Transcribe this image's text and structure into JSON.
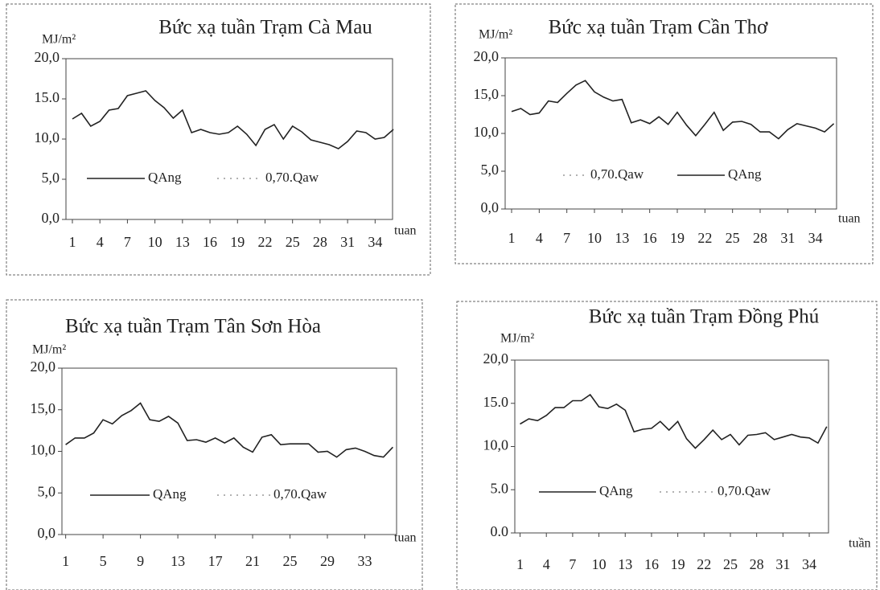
{
  "chart_data": [
    {
      "type": "line",
      "title": "Bức xạ tuần Trạm Cà Mau",
      "y_label": "MJ/m²",
      "x_label": "tuan",
      "x": [
        1,
        2,
        3,
        4,
        5,
        6,
        7,
        8,
        9,
        10,
        11,
        12,
        13,
        14,
        15,
        16,
        17,
        18,
        19,
        20,
        21,
        22,
        23,
        24,
        25,
        26,
        27,
        28,
        29,
        30,
        31,
        32,
        33,
        34,
        35,
        36
      ],
      "series": [
        {
          "name": "QAng",
          "color": "#222222",
          "values": [
            12.5,
            13.2,
            11.6,
            12.2,
            13.6,
            13.8,
            15.4,
            15.7,
            16.0,
            14.8,
            13.9,
            12.6,
            13.6,
            10.8,
            11.2,
            10.8,
            10.6,
            10.8,
            11.6,
            10.6,
            9.2,
            11.2,
            11.8,
            10.0,
            11.6,
            10.9,
            9.9,
            9.6,
            9.3,
            8.8,
            9.7,
            11.0,
            10.8,
            10.0,
            10.2,
            11.2
          ]
        },
        {
          "name": "0,70.Qaw",
          "color": "#999999",
          "values": [
            null,
            null,
            null,
            null,
            null,
            null,
            null,
            null,
            null,
            null,
            null,
            null,
            null,
            null,
            null,
            null,
            null,
            null,
            null,
            null,
            null,
            null,
            null,
            null,
            null,
            null,
            null,
            null,
            null,
            null,
            null,
            null,
            null,
            null,
            null,
            null
          ]
        }
      ],
      "xlim": [
        0.3,
        35.9
      ],
      "xticks": [
        1,
        4,
        7,
        10,
        13,
        16,
        19,
        22,
        25,
        28,
        31,
        34
      ],
      "ylim": [
        0,
        20
      ],
      "yticks": [
        {
          "value": 0,
          "label": "0,0"
        },
        {
          "value": 5,
          "label": "5,0"
        },
        {
          "value": 10,
          "label": "10,0"
        },
        {
          "value": 15,
          "label": "15.0"
        },
        {
          "value": 20,
          "label": "20,0"
        }
      ]
    },
    {
      "type": "line",
      "title": "Bức xạ tuần Trạm Cần Thơ",
      "y_label": "MJ/m²",
      "x_label": "tuan",
      "x": [
        1,
        2,
        3,
        4,
        5,
        6,
        7,
        8,
        9,
        10,
        11,
        12,
        13,
        14,
        15,
        16,
        17,
        18,
        19,
        20,
        21,
        22,
        23,
        24,
        25,
        26,
        27,
        28,
        29,
        30,
        31,
        32,
        33,
        34,
        35,
        36
      ],
      "series": [
        {
          "name": "0,70.Qaw",
          "color": "#999999",
          "values": [
            null,
            null,
            null,
            null,
            null,
            null,
            null,
            null,
            null,
            null,
            null,
            null,
            null,
            null,
            null,
            null,
            null,
            null,
            null,
            null,
            null,
            null,
            null,
            null,
            null,
            null,
            null,
            null,
            null,
            null,
            null,
            null,
            null,
            null,
            null,
            null
          ]
        },
        {
          "name": "QAng",
          "color": "#222222",
          "values": [
            12.9,
            13.3,
            12.5,
            12.7,
            14.3,
            14.1,
            15.3,
            16.4,
            17.0,
            15.5,
            14.8,
            14.3,
            14.5,
            11.4,
            11.8,
            11.3,
            12.2,
            11.2,
            12.8,
            11.1,
            9.7,
            11.2,
            12.8,
            10.4,
            11.5,
            11.6,
            11.2,
            10.2,
            10.2,
            9.3,
            10.5,
            11.3,
            11.0,
            10.7,
            10.2,
            11.3
          ]
        }
      ],
      "xlim": [
        0.3,
        36.3
      ],
      "xticks": [
        1,
        4,
        7,
        10,
        13,
        16,
        19,
        22,
        25,
        28,
        31,
        34
      ],
      "ylim": [
        0,
        20
      ],
      "yticks": [
        {
          "value": 0,
          "label": "0,0"
        },
        {
          "value": 5,
          "label": "5,0"
        },
        {
          "value": 10,
          "label": "10,0"
        },
        {
          "value": 15,
          "label": "15,0"
        },
        {
          "value": 20,
          "label": "20,0"
        }
      ]
    },
    {
      "type": "line",
      "title": "Bức xạ tuần Trạm Tân Sơn Hòa",
      "y_label": "MJ/m²",
      "x_label": "tuan",
      "x": [
        1,
        2,
        3,
        4,
        5,
        6,
        7,
        8,
        9,
        10,
        11,
        12,
        13,
        14,
        15,
        16,
        17,
        18,
        19,
        20,
        21,
        22,
        23,
        24,
        25,
        26,
        27,
        28,
        29,
        30,
        31,
        32,
        33,
        34,
        35,
        36
      ],
      "series": [
        {
          "name": "QAng",
          "color": "#222222",
          "values": [
            10.8,
            11.6,
            11.6,
            12.2,
            13.8,
            13.3,
            14.3,
            14.9,
            15.8,
            13.8,
            13.6,
            14.2,
            13.4,
            11.3,
            11.4,
            11.1,
            11.6,
            11.0,
            11.6,
            10.5,
            9.9,
            11.7,
            12.0,
            10.8,
            10.9,
            10.9,
            10.9,
            9.9,
            10.0,
            9.3,
            10.2,
            10.4,
            10.0,
            9.5,
            9.3,
            10.5
          ]
        },
        {
          "name": "0,70.Qaw",
          "color": "#999999",
          "values": [
            null,
            null,
            null,
            null,
            null,
            null,
            null,
            null,
            null,
            null,
            null,
            null,
            null,
            null,
            null,
            null,
            null,
            null,
            null,
            null,
            null,
            null,
            null,
            null,
            null,
            null,
            null,
            null,
            null,
            null,
            null,
            null,
            null,
            null,
            null,
            null
          ]
        }
      ],
      "xlim": [
        0.6,
        36.4
      ],
      "xticks": [
        1,
        5,
        9,
        13,
        17,
        21,
        25,
        29,
        33
      ],
      "ylim": [
        0,
        20
      ],
      "yticks": [
        {
          "value": 0,
          "label": "0,0"
        },
        {
          "value": 5,
          "label": "5,0"
        },
        {
          "value": 10,
          "label": "10,0"
        },
        {
          "value": 15,
          "label": "15,0"
        },
        {
          "value": 20,
          "label": "20,0"
        }
      ]
    },
    {
      "type": "line",
      "title": "Bức xạ tuần Trạm Đồng Phú",
      "y_label": "MJ/m²",
      "x_label": "tuần",
      "x": [
        1,
        2,
        3,
        4,
        5,
        6,
        7,
        8,
        9,
        10,
        11,
        12,
        13,
        14,
        15,
        16,
        17,
        18,
        19,
        20,
        21,
        22,
        23,
        24,
        25,
        26,
        27,
        28,
        29,
        30,
        31,
        32,
        33,
        34,
        35,
        36
      ],
      "series": [
        {
          "name": "QAng",
          "color": "#222222",
          "values": [
            12.6,
            13.2,
            13.0,
            13.6,
            14.5,
            14.5,
            15.3,
            15.3,
            16.0,
            14.6,
            14.4,
            14.9,
            14.2,
            11.7,
            12.0,
            12.1,
            12.9,
            11.9,
            12.9,
            10.9,
            9.8,
            10.8,
            11.9,
            10.8,
            11.4,
            10.2,
            11.3,
            11.4,
            11.6,
            10.8,
            11.1,
            11.4,
            11.1,
            11.0,
            10.4,
            12.3
          ]
        },
        {
          "name": "0,70.Qaw",
          "color": "#999999",
          "values": [
            null,
            null,
            null,
            null,
            null,
            null,
            null,
            null,
            null,
            null,
            null,
            null,
            null,
            null,
            null,
            null,
            null,
            null,
            null,
            null,
            null,
            null,
            null,
            null,
            null,
            null,
            null,
            null,
            null,
            null,
            null,
            null,
            null,
            null,
            null,
            null
          ]
        }
      ],
      "xlim": [
        0.4,
        36.2
      ],
      "xticks": [
        1,
        4,
        7,
        10,
        13,
        16,
        19,
        22,
        25,
        28,
        31,
        34
      ],
      "ylim": [
        0,
        20
      ],
      "yticks": [
        {
          "value": 0,
          "label": "0.0"
        },
        {
          "value": 5,
          "label": "5.0"
        },
        {
          "value": 10,
          "label": "10,0"
        },
        {
          "value": 15,
          "label": "15.0"
        },
        {
          "value": 20,
          "label": "20,0"
        }
      ]
    }
  ]
}
